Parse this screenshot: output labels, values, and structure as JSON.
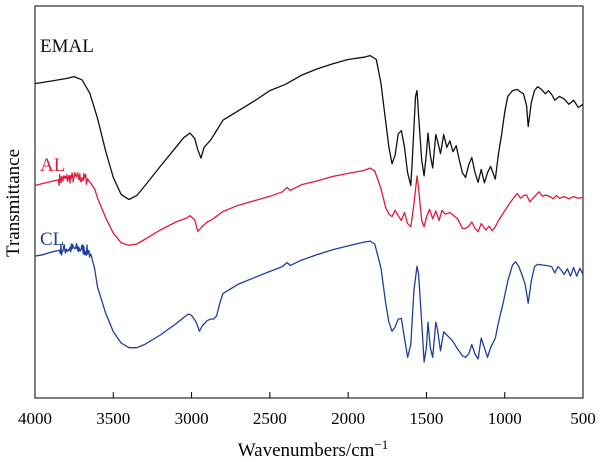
{
  "chart_data": {
    "type": "line",
    "title": "",
    "xlabel": "Wavenumbers/cm",
    "xlabel_superscript": "−1",
    "ylabel": "Transmittance",
    "xlim": [
      4000,
      500
    ],
    "x_reversed": true,
    "x_ticks": [
      4000,
      3500,
      3000,
      2500,
      2000,
      1500,
      1000,
      500
    ],
    "y_ticks_shown": false,
    "grid": false,
    "legend": "inline labels at top-left of each curve",
    "series": [
      {
        "name": "EMAL",
        "color": "#111111",
        "noise": false,
        "points": [
          [
            4000,
            0.8
          ],
          [
            3900,
            0.808
          ],
          [
            3800,
            0.816
          ],
          [
            3750,
            0.822
          ],
          [
            3700,
            0.812
          ],
          [
            3650,
            0.77
          ],
          [
            3600,
            0.69
          ],
          [
            3550,
            0.59
          ],
          [
            3500,
            0.505
          ],
          [
            3450,
            0.452
          ],
          [
            3400,
            0.436
          ],
          [
            3350,
            0.448
          ],
          [
            3300,
            0.478
          ],
          [
            3200,
            0.54
          ],
          [
            3100,
            0.6
          ],
          [
            3050,
            0.63
          ],
          [
            3010,
            0.645
          ],
          [
            2980,
            0.628
          ],
          [
            2960,
            0.592
          ],
          [
            2940,
            0.566
          ],
          [
            2920,
            0.6
          ],
          [
            2880,
            0.622
          ],
          [
            2850,
            0.645
          ],
          [
            2800,
            0.685
          ],
          [
            2700,
            0.715
          ],
          [
            2600,
            0.745
          ],
          [
            2500,
            0.778
          ],
          [
            2400,
            0.798
          ],
          [
            2300,
            0.826
          ],
          [
            2200,
            0.846
          ],
          [
            2100,
            0.862
          ],
          [
            2000,
            0.876
          ],
          [
            1900,
            0.883
          ],
          [
            1860,
            0.888
          ],
          [
            1820,
            0.876
          ],
          [
            1790,
            0.8
          ],
          [
            1760,
            0.68
          ],
          [
            1740,
            0.6
          ],
          [
            1720,
            0.548
          ],
          [
            1700,
            0.575
          ],
          [
            1680,
            0.642
          ],
          [
            1660,
            0.652
          ],
          [
            1640,
            0.6
          ],
          [
            1620,
            0.52
          ],
          [
            1600,
            0.48
          ],
          [
            1590,
            0.56
          ],
          [
            1570,
            0.76
          ],
          [
            1560,
            0.778
          ],
          [
            1550,
            0.7
          ],
          [
            1530,
            0.56
          ],
          [
            1515,
            0.51
          ],
          [
            1500,
            0.58
          ],
          [
            1490,
            0.645
          ],
          [
            1475,
            0.575
          ],
          [
            1460,
            0.535
          ],
          [
            1440,
            0.64
          ],
          [
            1430,
            0.622
          ],
          [
            1410,
            0.58
          ],
          [
            1390,
            0.64
          ],
          [
            1370,
            0.6
          ],
          [
            1350,
            0.62
          ],
          [
            1330,
            0.586
          ],
          [
            1310,
            0.605
          ],
          [
            1290,
            0.56
          ],
          [
            1270,
            0.52
          ],
          [
            1250,
            0.505
          ],
          [
            1230,
            0.545
          ],
          [
            1210,
            0.568
          ],
          [
            1190,
            0.52
          ],
          [
            1170,
            0.49
          ],
          [
            1150,
            0.53
          ],
          [
            1130,
            0.488
          ],
          [
            1110,
            0.52
          ],
          [
            1090,
            0.54
          ],
          [
            1060,
            0.5
          ],
          [
            1040,
            0.58
          ],
          [
            1020,
            0.64
          ],
          [
            1000,
            0.71
          ],
          [
            980,
            0.76
          ],
          [
            950,
            0.778
          ],
          [
            920,
            0.782
          ],
          [
            900,
            0.774
          ],
          [
            880,
            0.768
          ],
          [
            860,
            0.73
          ],
          [
            850,
            0.665
          ],
          [
            830,
            0.74
          ],
          [
            810,
            0.778
          ],
          [
            790,
            0.79
          ],
          [
            770,
            0.784
          ],
          [
            740,
            0.768
          ],
          [
            720,
            0.778
          ],
          [
            700,
            0.766
          ],
          [
            680,
            0.748
          ],
          [
            650,
            0.76
          ],
          [
            620,
            0.752
          ],
          [
            590,
            0.735
          ],
          [
            560,
            0.748
          ],
          [
            530,
            0.725
          ],
          [
            500,
            0.735
          ]
        ]
      },
      {
        "name": "AL",
        "color": "#e01c38",
        "noise": true,
        "noise_from": 3880,
        "noise_to": 3640,
        "points": [
          [
            4000,
            0.48
          ],
          [
            3950,
            0.486
          ],
          [
            3900,
            0.492
          ],
          [
            3850,
            0.498
          ],
          [
            3800,
            0.502
          ],
          [
            3750,
            0.505
          ],
          [
            3700,
            0.504
          ],
          [
            3660,
            0.498
          ],
          [
            3620,
            0.47
          ],
          [
            3600,
            0.44
          ],
          [
            3550,
            0.38
          ],
          [
            3500,
            0.33
          ],
          [
            3450,
            0.3
          ],
          [
            3400,
            0.292
          ],
          [
            3350,
            0.296
          ],
          [
            3300,
            0.31
          ],
          [
            3200,
            0.34
          ],
          [
            3100,
            0.365
          ],
          [
            3030,
            0.378
          ],
          [
            3010,
            0.385
          ],
          [
            2980,
            0.372
          ],
          [
            2960,
            0.336
          ],
          [
            2930,
            0.352
          ],
          [
            2900,
            0.365
          ],
          [
            2870,
            0.372
          ],
          [
            2850,
            0.38
          ],
          [
            2800,
            0.398
          ],
          [
            2700,
            0.418
          ],
          [
            2600,
            0.432
          ],
          [
            2500,
            0.446
          ],
          [
            2420,
            0.46
          ],
          [
            2390,
            0.474
          ],
          [
            2370,
            0.464
          ],
          [
            2300,
            0.482
          ],
          [
            2200,
            0.494
          ],
          [
            2100,
            0.508
          ],
          [
            2000,
            0.518
          ],
          [
            1900,
            0.527
          ],
          [
            1860,
            0.535
          ],
          [
            1830,
            0.525
          ],
          [
            1790,
            0.47
          ],
          [
            1760,
            0.41
          ],
          [
            1740,
            0.39
          ],
          [
            1720,
            0.382
          ],
          [
            1700,
            0.402
          ],
          [
            1680,
            0.385
          ],
          [
            1660,
            0.37
          ],
          [
            1640,
            0.395
          ],
          [
            1620,
            0.36
          ],
          [
            1600,
            0.35
          ],
          [
            1580,
            0.42
          ],
          [
            1560,
            0.51
          ],
          [
            1550,
            0.47
          ],
          [
            1530,
            0.37
          ],
          [
            1515,
            0.35
          ],
          [
            1500,
            0.38
          ],
          [
            1480,
            0.405
          ],
          [
            1460,
            0.375
          ],
          [
            1440,
            0.4
          ],
          [
            1420,
            0.37
          ],
          [
            1400,
            0.402
          ],
          [
            1380,
            0.39
          ],
          [
            1350,
            0.395
          ],
          [
            1300,
            0.375
          ],
          [
            1270,
            0.345
          ],
          [
            1250,
            0.345
          ],
          [
            1230,
            0.352
          ],
          [
            1210,
            0.365
          ],
          [
            1190,
            0.345
          ],
          [
            1170,
            0.335
          ],
          [
            1150,
            0.36
          ],
          [
            1120,
            0.34
          ],
          [
            1100,
            0.352
          ],
          [
            1080,
            0.338
          ],
          [
            1060,
            0.35
          ],
          [
            1040,
            0.37
          ],
          [
            1000,
            0.4
          ],
          [
            960,
            0.43
          ],
          [
            920,
            0.455
          ],
          [
            900,
            0.44
          ],
          [
            880,
            0.448
          ],
          [
            860,
            0.45
          ],
          [
            840,
            0.428
          ],
          [
            820,
            0.44
          ],
          [
            800,
            0.45
          ],
          [
            780,
            0.46
          ],
          [
            760,
            0.446
          ],
          [
            740,
            0.45
          ],
          [
            710,
            0.445
          ],
          [
            690,
            0.438
          ],
          [
            670,
            0.448
          ],
          [
            650,
            0.44
          ],
          [
            620,
            0.445
          ],
          [
            590,
            0.438
          ],
          [
            560,
            0.445
          ],
          [
            530,
            0.44
          ],
          [
            500,
            0.442
          ]
        ]
      },
      {
        "name": "CL",
        "color": "#1f3f9a",
        "noise": true,
        "noise_from": 3880,
        "noise_to": 3630,
        "points": [
          [
            4000,
            0.258
          ],
          [
            3950,
            0.262
          ],
          [
            3900,
            0.27
          ],
          [
            3850,
            0.276
          ],
          [
            3800,
            0.28
          ],
          [
            3750,
            0.282
          ],
          [
            3700,
            0.28
          ],
          [
            3660,
            0.274
          ],
          [
            3640,
            0.258
          ],
          [
            3620,
            0.22
          ],
          [
            3600,
            0.16
          ],
          [
            3550,
            0.08
          ],
          [
            3500,
            0.02
          ],
          [
            3450,
            -0.015
          ],
          [
            3400,
            -0.03
          ],
          [
            3350,
            -0.03
          ],
          [
            3300,
            -0.02
          ],
          [
            3200,
            0.01
          ],
          [
            3100,
            0.045
          ],
          [
            3050,
            0.065
          ],
          [
            3020,
            0.076
          ],
          [
            3000,
            0.072
          ],
          [
            2970,
            0.05
          ],
          [
            2950,
            0.022
          ],
          [
            2930,
            0.04
          ],
          [
            2900,
            0.055
          ],
          [
            2880,
            0.06
          ],
          [
            2860,
            0.06
          ],
          [
            2840,
            0.07
          ],
          [
            2820,
            0.11
          ],
          [
            2800,
            0.14
          ],
          [
            2700,
            0.17
          ],
          [
            2600,
            0.19
          ],
          [
            2500,
            0.21
          ],
          [
            2420,
            0.225
          ],
          [
            2390,
            0.238
          ],
          [
            2370,
            0.228
          ],
          [
            2300,
            0.245
          ],
          [
            2200,
            0.262
          ],
          [
            2100,
            0.278
          ],
          [
            2000,
            0.29
          ],
          [
            1900,
            0.302
          ],
          [
            1860,
            0.305
          ],
          [
            1830,
            0.296
          ],
          [
            1790,
            0.22
          ],
          [
            1760,
            0.11
          ],
          [
            1740,
            0.05
          ],
          [
            1720,
            0.022
          ],
          [
            1700,
            0.035
          ],
          [
            1680,
            0.06
          ],
          [
            1660,
            0.062
          ],
          [
            1640,
            0.0
          ],
          [
            1620,
            -0.06
          ],
          [
            1600,
            -0.02
          ],
          [
            1580,
            0.15
          ],
          [
            1560,
            0.226
          ],
          [
            1550,
            0.2
          ],
          [
            1530,
            0.05
          ],
          [
            1515,
            -0.075
          ],
          [
            1500,
            -0.03
          ],
          [
            1490,
            0.05
          ],
          [
            1475,
            -0.03
          ],
          [
            1460,
            -0.06
          ],
          [
            1440,
            0.05
          ],
          [
            1430,
            0.03
          ],
          [
            1410,
            -0.04
          ],
          [
            1390,
            0.02
          ],
          [
            1370,
            0.01
          ],
          [
            1350,
            0.0
          ],
          [
            1330,
            -0.01
          ],
          [
            1300,
            -0.035
          ],
          [
            1270,
            -0.055
          ],
          [
            1250,
            -0.06
          ],
          [
            1230,
            -0.05
          ],
          [
            1210,
            -0.02
          ],
          [
            1190,
            -0.05
          ],
          [
            1170,
            -0.065
          ],
          [
            1150,
            0.0
          ],
          [
            1130,
            -0.03
          ],
          [
            1110,
            -0.06
          ],
          [
            1090,
            -0.03
          ],
          [
            1060,
            0.0
          ],
          [
            1040,
            0.05
          ],
          [
            1010,
            0.11
          ],
          [
            980,
            0.18
          ],
          [
            950,
            0.23
          ],
          [
            930,
            0.24
          ],
          [
            910,
            0.225
          ],
          [
            890,
            0.2
          ],
          [
            870,
            0.17
          ],
          [
            850,
            0.11
          ],
          [
            830,
            0.18
          ],
          [
            810,
            0.225
          ],
          [
            790,
            0.232
          ],
          [
            760,
            0.23
          ],
          [
            730,
            0.228
          ],
          [
            700,
            0.225
          ],
          [
            680,
            0.205
          ],
          [
            660,
            0.225
          ],
          [
            640,
            0.215
          ],
          [
            620,
            0.2
          ],
          [
            600,
            0.218
          ],
          [
            580,
            0.195
          ],
          [
            560,
            0.222
          ],
          [
            540,
            0.195
          ],
          [
            520,
            0.22
          ],
          [
            500,
            0.2
          ]
        ]
      }
    ]
  }
}
